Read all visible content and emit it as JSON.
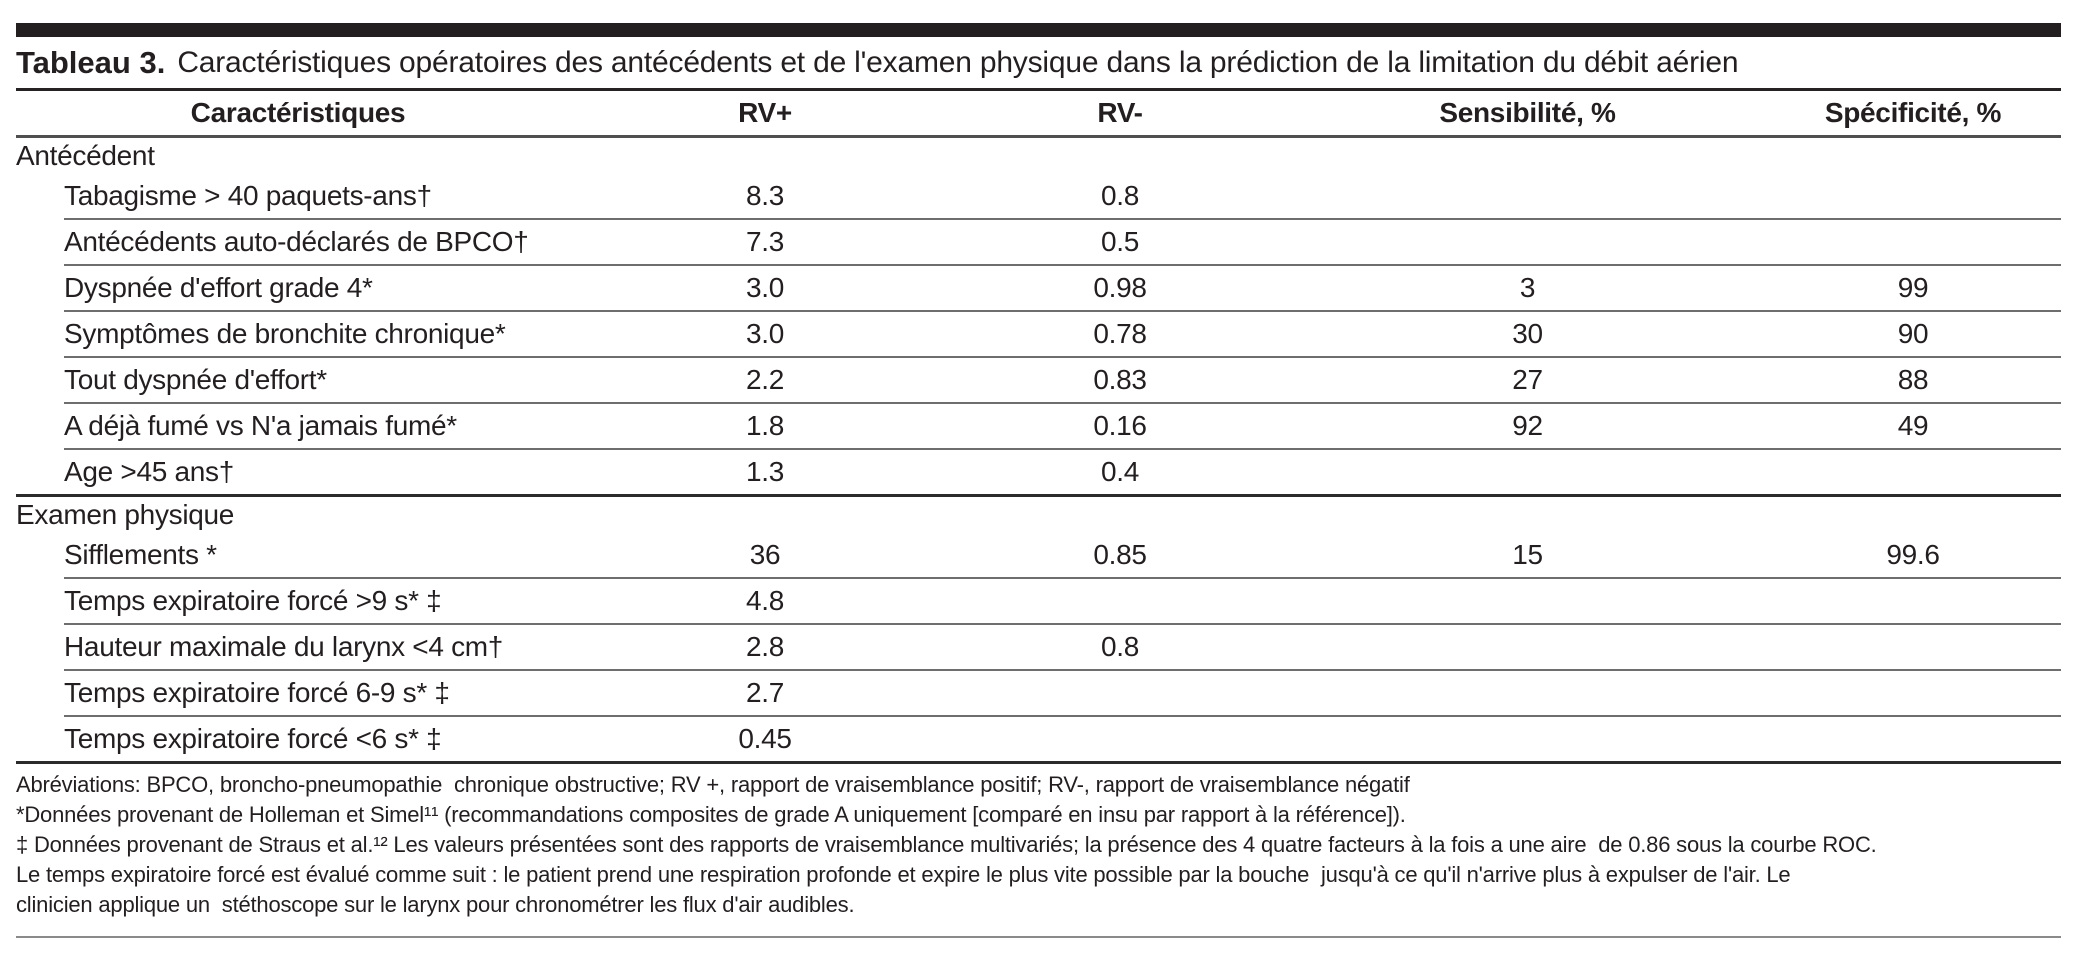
{
  "table": {
    "title_prefix": "Tableau 3.",
    "title_text": "Caractéristiques opératoires des antécédents et de l'examen physique dans la prédiction de la limitation du débit aérien",
    "columns": [
      "Caractéristiques",
      "RV+",
      "RV-",
      "Sensibilité, %",
      "Spécificité, %"
    ],
    "sections": [
      {
        "name": "Antécédent",
        "rows": [
          {
            "label": "Tabagisme > 40 paquets-ans†",
            "rv_plus": "8.3",
            "rv_minus": "0.8",
            "sensibilite": "",
            "specificite": ""
          },
          {
            "label": "Antécédents auto-déclarés de BPCO†",
            "rv_plus": "7.3",
            "rv_minus": "0.5",
            "sensibilite": "",
            "specificite": ""
          },
          {
            "label": "Dyspnée d'effort grade 4*",
            "rv_plus": "3.0",
            "rv_minus": "0.98",
            "sensibilite": "3",
            "specificite": "99"
          },
          {
            "label": "Symptômes de bronchite chronique*",
            "rv_plus": "3.0",
            "rv_minus": "0.78",
            "sensibilite": "30",
            "specificite": "90"
          },
          {
            "label": "Tout dyspnée d'effort*",
            "rv_plus": "2.2",
            "rv_minus": "0.83",
            "sensibilite": "27",
            "specificite": "88"
          },
          {
            "label": "A déjà fumé vs N'a jamais fumé*",
            "rv_plus": "1.8",
            "rv_minus": "0.16",
            "sensibilite": "92",
            "specificite": "49"
          },
          {
            "label": "Age >45 ans†",
            "rv_plus": "1.3",
            "rv_minus": "0.4",
            "sensibilite": "",
            "specificite": ""
          }
        ]
      },
      {
        "name": "Examen physique",
        "rows": [
          {
            "label": "Sifflements *",
            "rv_plus": "36",
            "rv_minus": "0.85",
            "sensibilite": "15",
            "specificite": "99.6"
          },
          {
            "label": "Temps expiratoire forcé >9 s* ‡",
            "rv_plus": "4.8",
            "rv_minus": "",
            "sensibilite": "",
            "specificite": ""
          },
          {
            "label": "Hauteur maximale du larynx <4 cm†",
            "rv_plus": "2.8",
            "rv_minus": "0.8",
            "sensibilite": "",
            "specificite": ""
          },
          {
            "label": "Temps expiratoire forcé 6-9 s* ‡",
            "rv_plus": "2.7",
            "rv_minus": "",
            "sensibilite": "",
            "specificite": ""
          },
          {
            "label": "Temps expiratoire forcé <6 s* ‡",
            "rv_plus": "0.45",
            "rv_minus": "",
            "sensibilite": "",
            "specificite": ""
          }
        ]
      }
    ],
    "footnotes": [
      "Abréviations: BPCO, broncho-pneumopathie  chronique obstructive; RV +, rapport de vraisemblance positif; RV-, rapport de vraisemblance négatif",
      "*Données provenant de Holleman et Simel¹¹ (recommandations composites de grade A uniquement [comparé en insu par rapport à la référence]).",
      "‡ Données provenant de Straus et al.¹² Les valeurs présentées sont des rapports de vraisemblance multivariés; la présence des 4 quatre facteurs à la fois a une aire  de 0.86 sous la courbe ROC.",
      "Le temps expiratoire forcé est évalué comme suit : le patient prend une respiration profonde et expire le plus vite possible par la bouche  jusqu'à ce qu'il n'arrive plus à expulser de l'air. Le",
      "clinicien applique un  stéthoscope sur le larynx pour chronométrer les flux d'air audibles."
    ],
    "colors": {
      "text": "#231f20",
      "top_bar": "#231f20",
      "major_rule": "#2b2b2b",
      "row_rule": "#6e6e6e"
    }
  }
}
